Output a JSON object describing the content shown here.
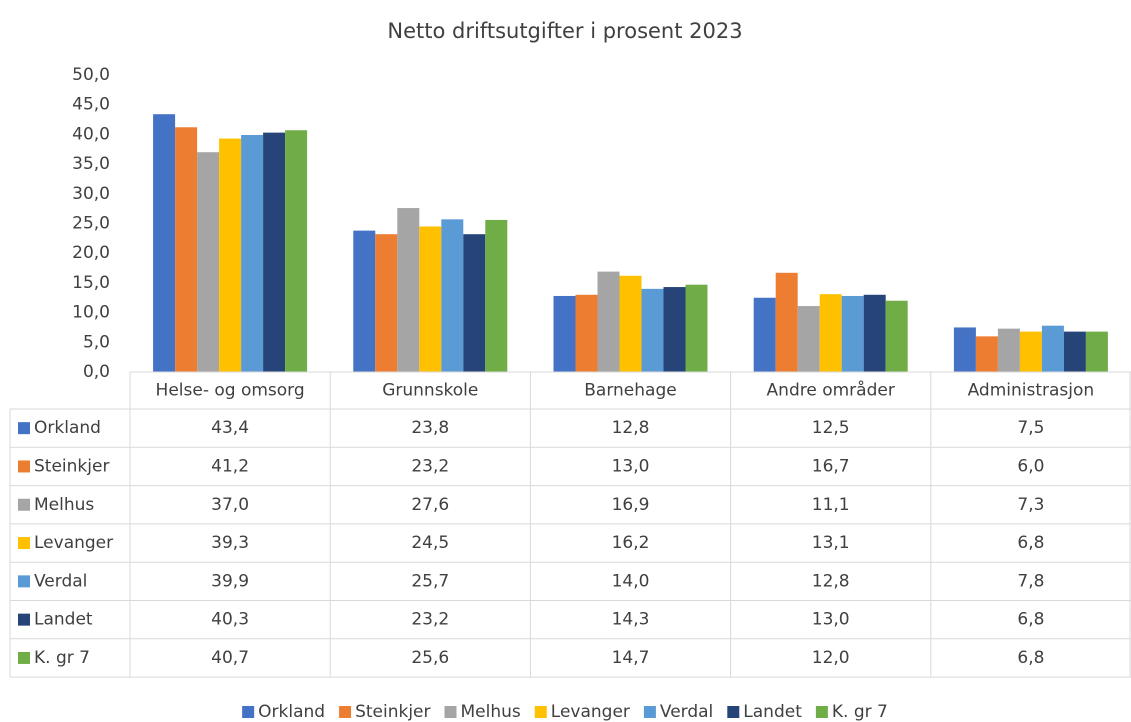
{
  "chart_data": {
    "type": "bar",
    "title": "Netto driftsutgifter i prosent 2023",
    "categories": [
      "Helse- og omsorg",
      "Grunnskole",
      "Barnehage",
      "Andre områder",
      "Administrasjon"
    ],
    "series": [
      {
        "name": "Orkland",
        "color": "#4472c4",
        "values": [
          43.4,
          23.8,
          12.8,
          12.5,
          7.5
        ],
        "value_labels": [
          "43,4",
          "23,8",
          "12,8",
          "12,5",
          "7,5"
        ]
      },
      {
        "name": "Steinkjer",
        "color": "#ed7d31",
        "values": [
          41.2,
          23.2,
          13.0,
          16.7,
          6.0
        ],
        "value_labels": [
          "41,2",
          "23,2",
          "13,0",
          "16,7",
          "6,0"
        ]
      },
      {
        "name": "Melhus",
        "color": "#a5a5a5",
        "values": [
          37.0,
          27.6,
          16.9,
          11.1,
          7.3
        ],
        "value_labels": [
          "37,0",
          "27,6",
          "16,9",
          "11,1",
          "7,3"
        ]
      },
      {
        "name": "Levanger",
        "color": "#ffc000",
        "values": [
          39.3,
          24.5,
          16.2,
          13.1,
          6.8
        ],
        "value_labels": [
          "39,3",
          "24,5",
          "16,2",
          "13,1",
          "6,8"
        ]
      },
      {
        "name": "Verdal",
        "color": "#5b9bd5",
        "values": [
          39.9,
          25.7,
          14.0,
          12.8,
          7.8
        ],
        "value_labels": [
          "39,9",
          "25,7",
          "14,0",
          "12,8",
          "7,8"
        ]
      },
      {
        "name": "Landet",
        "color": "#264478",
        "values": [
          40.3,
          23.2,
          14.3,
          13.0,
          6.8
        ],
        "value_labels": [
          "40,3",
          "23,2",
          "14,3",
          "13,0",
          "6,8"
        ]
      },
      {
        "name": "K. gr 7",
        "color": "#70ad47",
        "values": [
          40.7,
          25.6,
          14.7,
          12.0,
          6.8
        ],
        "value_labels": [
          "40,7",
          "25,6",
          "14,7",
          "12,0",
          "6,8"
        ]
      }
    ],
    "ylim": [
      0,
      50
    ],
    "yticks": [
      {
        "value": 0,
        "label": "0,0"
      },
      {
        "value": 5,
        "label": "5,0"
      },
      {
        "value": 10,
        "label": "10,0"
      },
      {
        "value": 15,
        "label": "15,0"
      },
      {
        "value": 20,
        "label": "20,0"
      },
      {
        "value": 25,
        "label": "25,0"
      },
      {
        "value": 30,
        "label": "30,0"
      },
      {
        "value": 35,
        "label": "35,0"
      },
      {
        "value": 40,
        "label": "40,0"
      },
      {
        "value": 45,
        "label": "45,0"
      },
      {
        "value": 50,
        "label": "50,0"
      }
    ],
    "grid": false
  }
}
